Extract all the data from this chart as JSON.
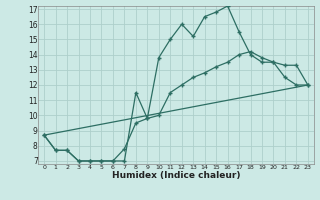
{
  "xlabel": "Humidex (Indice chaleur)",
  "bg_color": "#cce9e5",
  "line_color": "#2d6e63",
  "grid_color": "#aecfcb",
  "xlim": [
    -0.5,
    23.5
  ],
  "ylim": [
    6.8,
    17.2
  ],
  "xticks": [
    0,
    1,
    2,
    3,
    4,
    5,
    6,
    7,
    8,
    9,
    10,
    11,
    12,
    13,
    14,
    15,
    16,
    17,
    18,
    19,
    20,
    21,
    22,
    23
  ],
  "yticks": [
    7,
    8,
    9,
    10,
    11,
    12,
    13,
    14,
    15,
    16,
    17
  ],
  "line1_x": [
    0,
    1,
    2,
    3,
    4,
    5,
    6,
    7,
    8,
    9,
    10,
    11,
    12,
    13,
    14,
    15,
    16,
    17,
    18,
    19,
    20,
    21,
    22,
    23
  ],
  "line1_y": [
    8.7,
    7.7,
    7.7,
    7.0,
    7.0,
    7.0,
    7.0,
    7.0,
    11.5,
    9.8,
    13.8,
    15.0,
    16.0,
    15.2,
    16.5,
    16.8,
    17.2,
    15.5,
    14.0,
    13.5,
    13.5,
    12.5,
    12.0,
    12.0
  ],
  "line2_x": [
    0,
    1,
    2,
    3,
    4,
    5,
    6,
    7,
    8,
    9,
    10,
    11,
    12,
    13,
    14,
    15,
    16,
    17,
    18,
    19,
    20,
    21,
    22,
    23
  ],
  "line2_y": [
    8.7,
    7.7,
    7.7,
    7.0,
    7.0,
    7.0,
    7.0,
    7.8,
    9.5,
    9.8,
    10.0,
    11.5,
    12.0,
    12.5,
    12.8,
    13.2,
    13.5,
    14.0,
    14.2,
    13.8,
    13.5,
    13.3,
    13.3,
    12.0
  ],
  "line3_x": [
    0,
    23
  ],
  "line3_y": [
    8.7,
    12.0
  ]
}
